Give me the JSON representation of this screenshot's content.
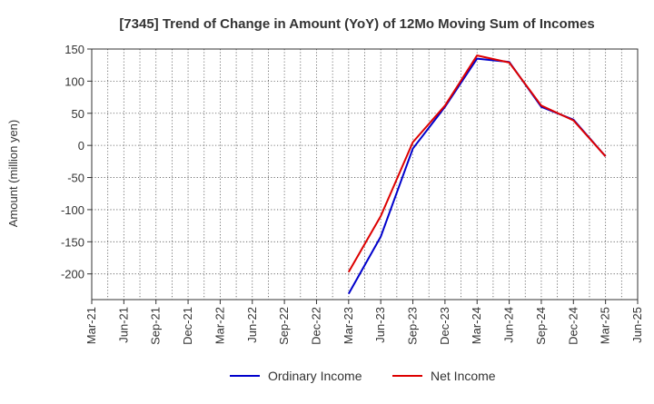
{
  "chart_data": {
    "type": "line",
    "title": "[7345]  Trend of Change in Amount (YoY) of 12Mo Moving Sum of Incomes",
    "xlabel": "",
    "ylabel": "Amount (million yen)",
    "ylim": [
      -240,
      150
    ],
    "yticks": [
      150,
      100,
      50,
      0,
      -50,
      -100,
      -150,
      -200
    ],
    "categories": [
      "Mar-21",
      "Jun-21",
      "Sep-21",
      "Dec-21",
      "Mar-22",
      "Jun-22",
      "Sep-22",
      "Dec-22",
      "Mar-23",
      "Jun-23",
      "Sep-23",
      "Dec-23",
      "Mar-24",
      "Jun-24",
      "Sep-24",
      "Dec-24",
      "Mar-25",
      "Jun-25"
    ],
    "grid": true,
    "legend_position": "bottom-center",
    "series": [
      {
        "name": "Ordinary Income",
        "color": "#0000cc",
        "values": [
          null,
          null,
          null,
          null,
          null,
          null,
          null,
          null,
          -231,
          -142,
          -5,
          60,
          135,
          130,
          60,
          40,
          -17,
          null
        ]
      },
      {
        "name": "Net Income",
        "color": "#dd0000",
        "values": [
          null,
          null,
          null,
          null,
          null,
          null,
          null,
          null,
          -197,
          -110,
          5,
          62,
          140,
          129,
          62,
          39,
          -17,
          null
        ]
      }
    ]
  }
}
